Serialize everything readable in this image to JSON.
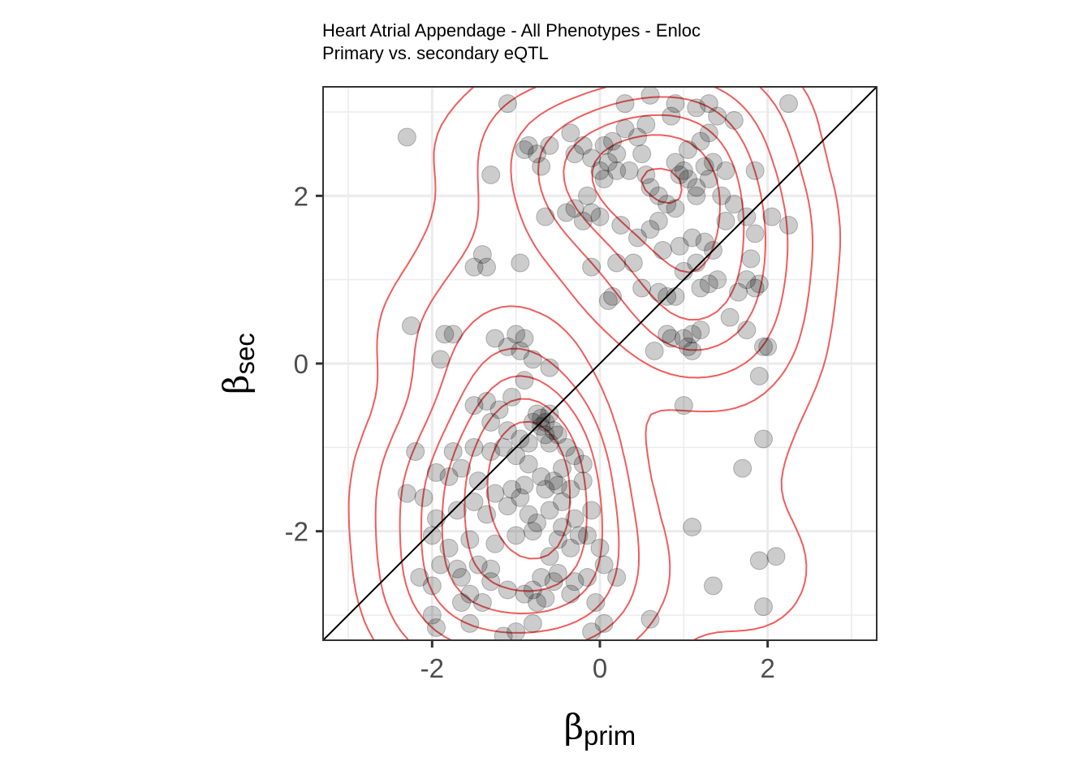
{
  "title": "Heart Atrial Appendage - All Phenotypes - Enloc",
  "subtitle": "Primary vs. secondary eQTL",
  "chart_data": {
    "type": "scatter",
    "title": "Heart Atrial Appendage - All Phenotypes - Enloc",
    "subtitle": "Primary vs. secondary eQTL",
    "xlabel": {
      "symbol": "β",
      "subscript": "prim"
    },
    "ylabel": {
      "symbol": "β",
      "subscript": "sec"
    },
    "xlim": [
      -3.3,
      3.3
    ],
    "ylim": [
      -3.3,
      3.3
    ],
    "x_ticks": [
      -2,
      0,
      2
    ],
    "y_ticks": [
      -2,
      0,
      2
    ],
    "x_tick_labels": [
      "-2",
      "0",
      "2"
    ],
    "y_tick_labels": [
      "-2",
      "0",
      "2"
    ],
    "grid": true,
    "reference_line": {
      "slope": 1,
      "intercept": 0,
      "color": "#000000"
    },
    "point_color": "#000000",
    "point_opacity": 0.2,
    "contour_color": "#ef5d5d",
    "points": [
      [
        -2.3,
        2.7
      ],
      [
        -1.3,
        2.25
      ],
      [
        -0.9,
        2.55
      ],
      [
        -0.85,
        2.6
      ],
      [
        -0.75,
        2.5
      ],
      [
        -0.7,
        2.35
      ],
      [
        -0.6,
        2.6
      ],
      [
        -0.65,
        1.75
      ],
      [
        -0.4,
        1.8
      ],
      [
        -0.3,
        1.85
      ],
      [
        -0.2,
        1.7
      ],
      [
        -0.1,
        1.8
      ],
      [
        0.0,
        1.75
      ],
      [
        -0.15,
        2.0
      ],
      [
        0.05,
        2.2
      ],
      [
        0.1,
        2.4
      ],
      [
        0.2,
        2.5
      ],
      [
        0.35,
        2.3
      ],
      [
        0.5,
        2.5
      ],
      [
        0.6,
        2.1
      ],
      [
        0.7,
        2.0
      ],
      [
        0.8,
        1.9
      ],
      [
        0.9,
        1.85
      ],
      [
        0.25,
        1.65
      ],
      [
        0.45,
        1.5
      ],
      [
        0.6,
        1.6
      ],
      [
        0.7,
        1.7
      ],
      [
        0.95,
        1.4
      ],
      [
        1.1,
        1.5
      ],
      [
        1.25,
        1.45
      ],
      [
        1.35,
        1.35
      ],
      [
        1.15,
        1.2
      ],
      [
        1.3,
        2.2
      ],
      [
        1.15,
        2.0
      ],
      [
        1.0,
        2.3
      ],
      [
        0.9,
        2.4
      ],
      [
        1.05,
        2.55
      ],
      [
        1.2,
        2.65
      ],
      [
        1.35,
        2.4
      ],
      [
        1.5,
        2.3
      ],
      [
        1.6,
        1.9
      ],
      [
        1.5,
        1.7
      ],
      [
        1.45,
        2.0
      ],
      [
        1.75,
        1.75
      ],
      [
        1.85,
        2.3
      ],
      [
        1.85,
        1.55
      ],
      [
        2.05,
        1.75
      ],
      [
        2.25,
        1.65
      ],
      [
        1.8,
        1.25
      ],
      [
        1.75,
        1.0
      ],
      [
        1.85,
        0.9
      ],
      [
        1.65,
        0.85
      ],
      [
        1.9,
        0.95
      ],
      [
        1.55,
        0.55
      ],
      [
        1.75,
        0.4
      ],
      [
        1.95,
        0.2
      ],
      [
        2.0,
        0.2
      ],
      [
        1.9,
        -0.15
      ],
      [
        1.0,
        0.3
      ],
      [
        1.1,
        0.35
      ],
      [
        1.2,
        0.4
      ],
      [
        0.85,
        0.3
      ],
      [
        0.8,
        0.35
      ],
      [
        0.8,
        0.8
      ],
      [
        0.9,
        0.8
      ],
      [
        0.7,
        0.85
      ],
      [
        0.5,
        0.9
      ],
      [
        0.15,
        0.8
      ],
      [
        0.1,
        0.75
      ],
      [
        -0.1,
        1.15
      ],
      [
        0.2,
        1.2
      ],
      [
        0.4,
        1.2
      ],
      [
        0.75,
        1.35
      ],
      [
        1.0,
        1.1
      ],
      [
        1.2,
        0.9
      ],
      [
        1.3,
        0.95
      ],
      [
        1.4,
        1.0
      ],
      [
        0.65,
        0.15
      ],
      [
        1.1,
        0.15
      ],
      [
        1.05,
        0.2
      ],
      [
        1.0,
        -0.5
      ],
      [
        -1.4,
        1.3
      ],
      [
        -1.5,
        1.15
      ],
      [
        -1.35,
        1.15
      ],
      [
        -0.95,
        1.2
      ],
      [
        -2.25,
        0.45
      ],
      [
        -1.85,
        0.35
      ],
      [
        -1.75,
        0.35
      ],
      [
        -1.9,
        0.05
      ],
      [
        -1.25,
        0.3
      ],
      [
        -1.0,
        0.35
      ],
      [
        -0.9,
        0.3
      ],
      [
        -1.1,
        0.2
      ],
      [
        -0.95,
        0.15
      ],
      [
        -0.8,
        0.05
      ],
      [
        -0.6,
        -0.05
      ],
      [
        -0.9,
        -0.2
      ],
      [
        -1.05,
        -0.4
      ],
      [
        -1.5,
        -0.5
      ],
      [
        -1.35,
        -0.45
      ],
      [
        -1.2,
        -0.55
      ],
      [
        -1.3,
        -0.7
      ],
      [
        -1.1,
        -0.8
      ],
      [
        -0.95,
        -0.9
      ],
      [
        -0.85,
        -0.95
      ],
      [
        -0.8,
        -0.7
      ],
      [
        -0.75,
        -0.6
      ],
      [
        -0.7,
        -0.75
      ],
      [
        -0.65,
        -0.85
      ],
      [
        -0.6,
        -0.95
      ],
      [
        -0.5,
        -0.85
      ],
      [
        -0.4,
        -1.0
      ],
      [
        -0.3,
        -1.1
      ],
      [
        -0.2,
        -1.2
      ],
      [
        -0.45,
        -1.25
      ],
      [
        -0.55,
        -1.4
      ],
      [
        -0.7,
        -1.35
      ],
      [
        -0.85,
        -1.2
      ],
      [
        -1.0,
        -1.1
      ],
      [
        -1.15,
        -1.0
      ],
      [
        -1.3,
        -1.05
      ],
      [
        -1.5,
        -1.0
      ],
      [
        -1.75,
        -1.05
      ],
      [
        -2.2,
        -1.05
      ],
      [
        -1.95,
        -1.3
      ],
      [
        -1.8,
        -1.35
      ],
      [
        -1.65,
        -1.25
      ],
      [
        -1.45,
        -1.4
      ],
      [
        -1.25,
        -1.55
      ],
      [
        -1.05,
        -1.5
      ],
      [
        -0.9,
        -1.45
      ],
      [
        -0.65,
        -1.5
      ],
      [
        -0.5,
        -1.45
      ],
      [
        -0.35,
        -1.5
      ],
      [
        -0.2,
        -1.4
      ],
      [
        -2.3,
        -1.55
      ],
      [
        -2.1,
        -1.6
      ],
      [
        -1.95,
        -1.85
      ],
      [
        -1.7,
        -1.75
      ],
      [
        -1.5,
        -1.65
      ],
      [
        -1.35,
        -1.8
      ],
      [
        -1.1,
        -1.7
      ],
      [
        -0.95,
        -1.6
      ],
      [
        -0.85,
        -1.8
      ],
      [
        -0.75,
        -1.9
      ],
      [
        -0.6,
        -1.75
      ],
      [
        -0.45,
        -1.65
      ],
      [
        -0.3,
        -1.85
      ],
      [
        -0.1,
        -1.75
      ],
      [
        -0.45,
        -1.95
      ],
      [
        -0.5,
        -2.1
      ],
      [
        -0.35,
        -2.2
      ],
      [
        -0.25,
        -2.05
      ],
      [
        -0.6,
        -2.3
      ],
      [
        -0.8,
        -2.0
      ],
      [
        -1.0,
        -2.05
      ],
      [
        -1.25,
        -2.15
      ],
      [
        -1.55,
        -2.1
      ],
      [
        -1.8,
        -2.2
      ],
      [
        -2.0,
        -2.05
      ],
      [
        -0.15,
        -2.05
      ],
      [
        0.0,
        -2.2
      ],
      [
        0.05,
        -2.4
      ],
      [
        -0.15,
        -2.55
      ],
      [
        -0.3,
        -2.6
      ],
      [
        -0.5,
        -2.5
      ],
      [
        -0.55,
        -2.6
      ],
      [
        -0.7,
        -2.55
      ],
      [
        -0.8,
        -2.7
      ],
      [
        -0.75,
        -2.85
      ],
      [
        -0.65,
        -2.8
      ],
      [
        -0.9,
        -2.75
      ],
      [
        -1.1,
        -2.7
      ],
      [
        -1.3,
        -2.6
      ],
      [
        -1.45,
        -2.4
      ],
      [
        -1.3,
        -2.45
      ],
      [
        -1.7,
        -2.45
      ],
      [
        -1.9,
        -2.4
      ],
      [
        -2.15,
        -2.55
      ],
      [
        -2.0,
        -2.65
      ],
      [
        -1.65,
        -2.55
      ],
      [
        -1.55,
        -2.75
      ],
      [
        -1.4,
        -2.85
      ],
      [
        -1.65,
        -2.85
      ],
      [
        -2.0,
        -3.0
      ],
      [
        -1.95,
        -3.15
      ],
      [
        -1.55,
        -3.1
      ],
      [
        -1.15,
        -3.25
      ],
      [
        -1.0,
        -3.2
      ],
      [
        -0.8,
        -3.1
      ],
      [
        -0.35,
        -2.75
      ],
      [
        -0.05,
        -2.85
      ],
      [
        0.2,
        -2.55
      ],
      [
        0.05,
        -3.1
      ],
      [
        -0.1,
        -3.2
      ],
      [
        0.6,
        -3.05
      ],
      [
        1.1,
        -1.95
      ],
      [
        1.7,
        -1.25
      ],
      [
        1.95,
        -0.9
      ],
      [
        1.9,
        -2.35
      ],
      [
        2.1,
        -2.3
      ],
      [
        1.35,
        -2.65
      ],
      [
        1.95,
        -2.9
      ],
      [
        -0.6,
        -0.6
      ],
      [
        -0.65,
        -0.7
      ],
      [
        -0.55,
        -0.8
      ],
      [
        -0.7,
        -0.65
      ],
      [
        -1.1,
        3.1
      ],
      [
        -0.35,
        2.75
      ],
      [
        -0.2,
        2.6
      ],
      [
        0.05,
        2.6
      ],
      [
        0.15,
        2.65
      ],
      [
        0.3,
        2.8
      ],
      [
        0.55,
        2.85
      ],
      [
        0.45,
        2.7
      ],
      [
        0.3,
        3.1
      ],
      [
        0.6,
        3.2
      ],
      [
        0.85,
        2.95
      ],
      [
        0.9,
        3.1
      ],
      [
        1.15,
        3.05
      ],
      [
        1.3,
        3.1
      ],
      [
        1.4,
        2.95
      ],
      [
        1.3,
        2.75
      ],
      [
        1.6,
        2.9
      ],
      [
        2.25,
        3.1
      ],
      [
        1.05,
        2.2
      ],
      [
        1.25,
        2.35
      ],
      [
        0.95,
        2.25
      ],
      [
        1.15,
        2.1
      ],
      [
        0.55,
        2.25
      ],
      [
        0.0,
        2.3
      ],
      [
        0.2,
        2.3
      ],
      [
        -0.3,
        2.5
      ],
      [
        -0.1,
        2.45
      ]
    ],
    "notes_visible": [
      "Reference diagonal y = x drawn as solid black line",
      "Red 2D density contours"
    ]
  }
}
